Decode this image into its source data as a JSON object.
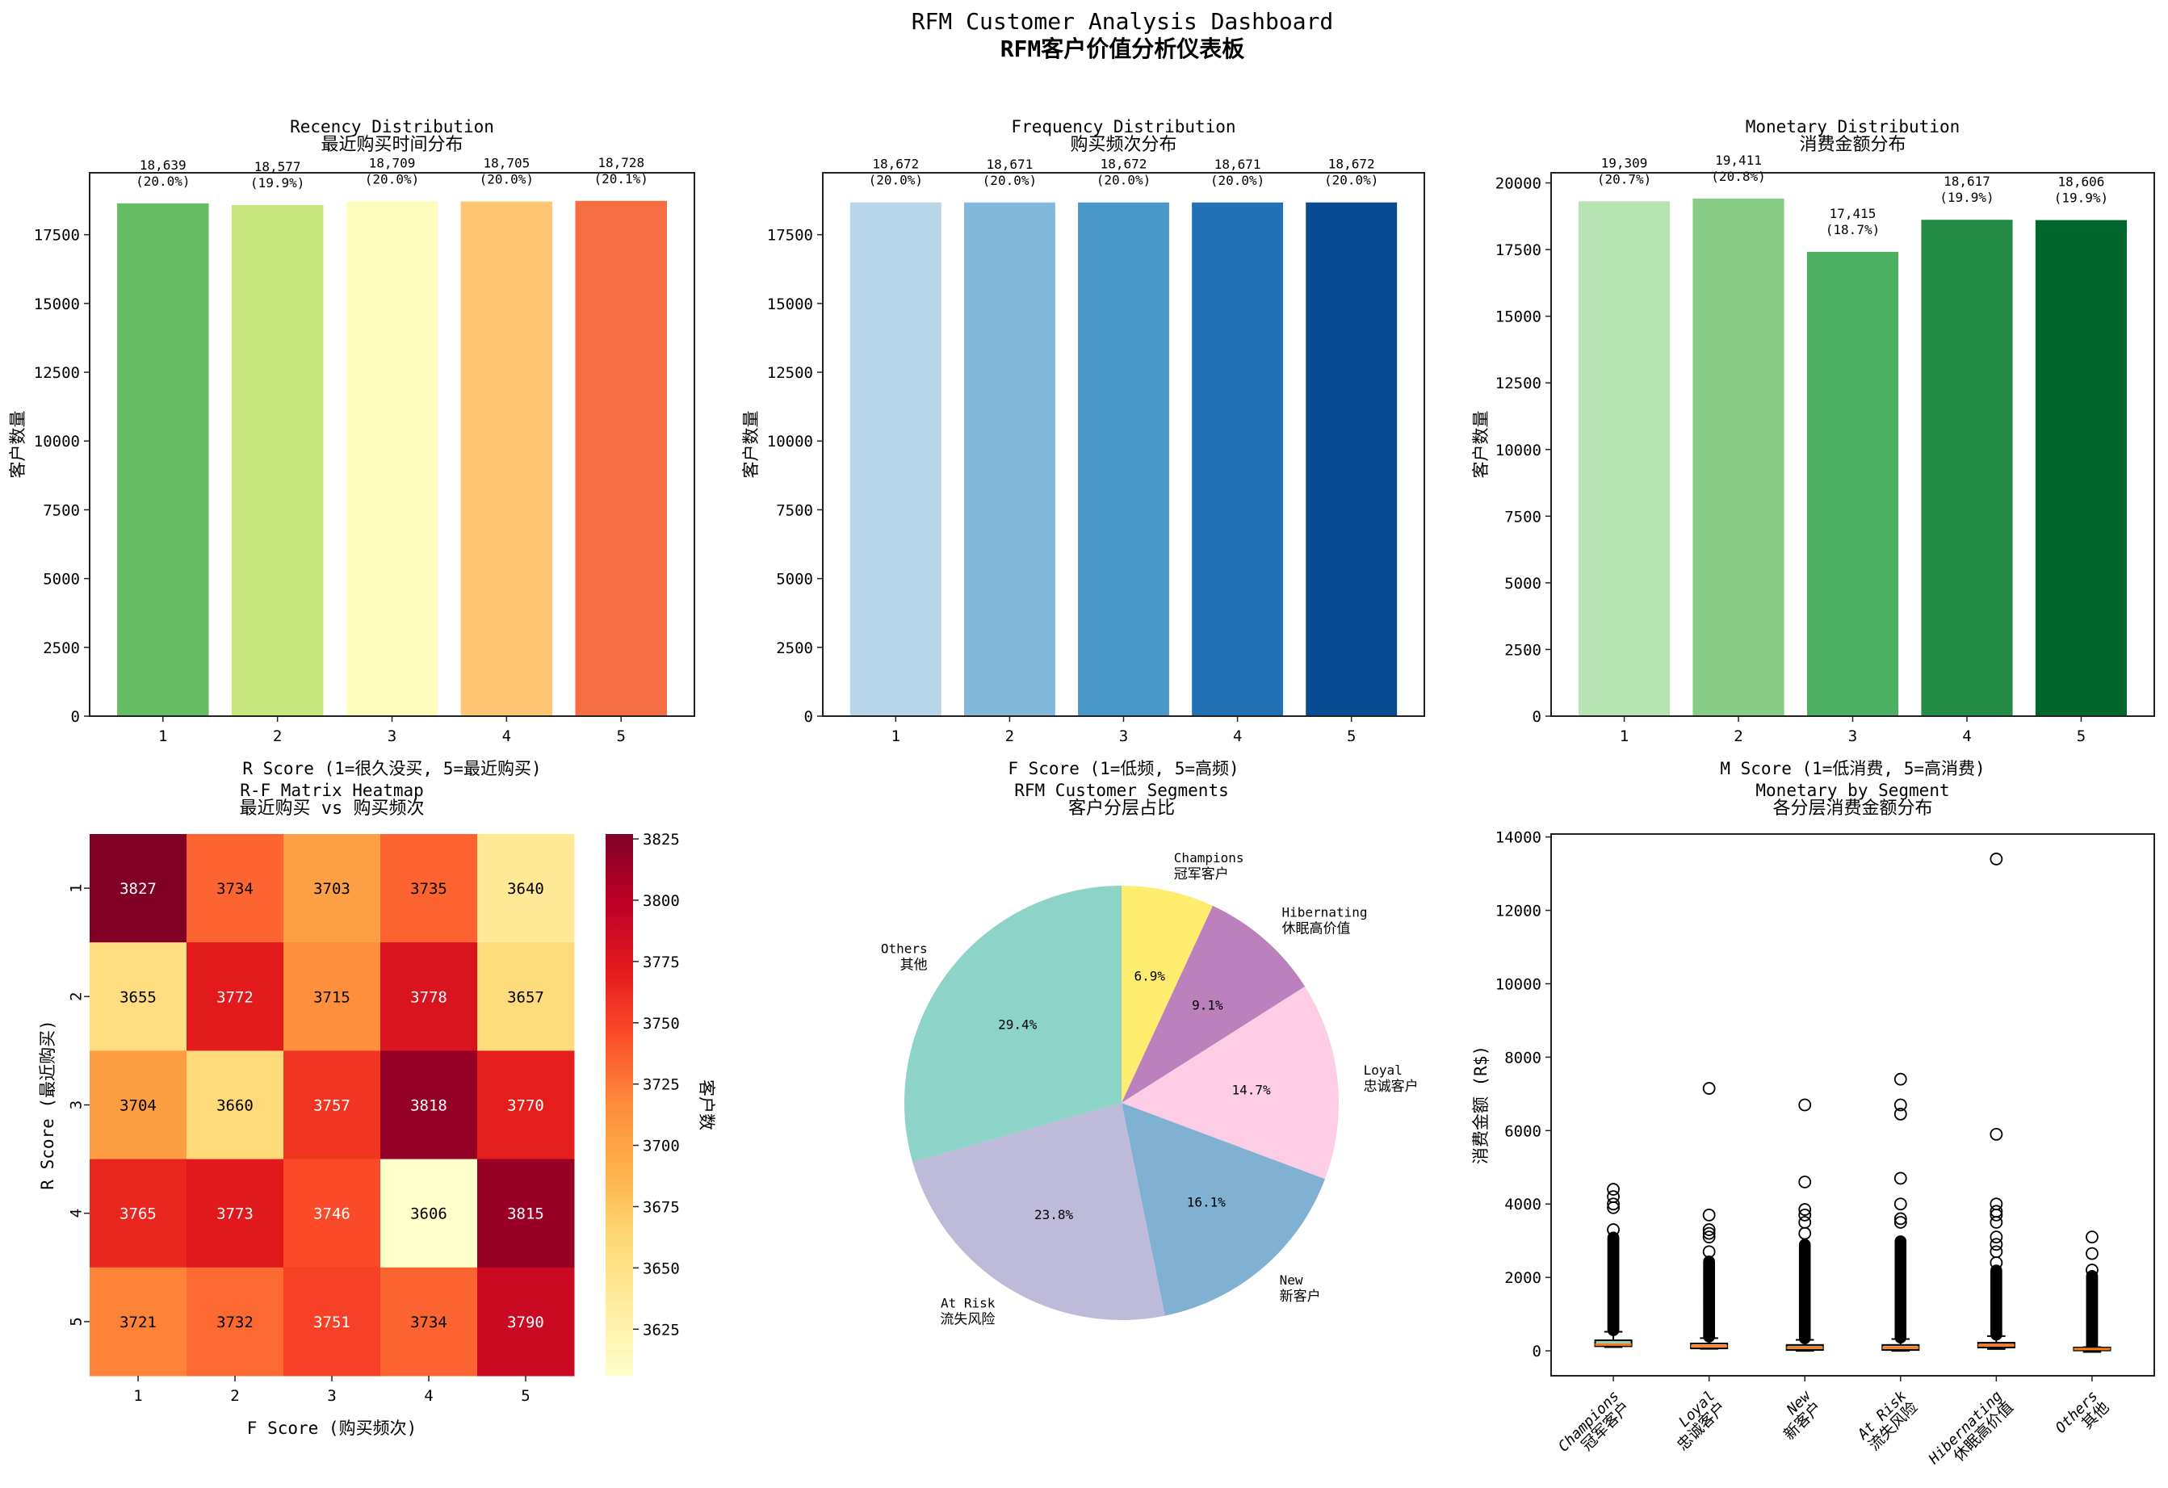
{
  "suptitle": [
    "RFM Customer Analysis Dashboard",
    "RFM客户价值分析仪表板"
  ],
  "chart_data": [
    {
      "type": "bar",
      "title": [
        "Recency Distribution",
        "最近购买时间分布"
      ],
      "xlabel": "R Score (1=很久没买, 5=最近购买)",
      "ylabel": "客户数量",
      "categories": [
        "1",
        "2",
        "3",
        "4",
        "5"
      ],
      "values": [
        18639,
        18577,
        18709,
        18705,
        18728
      ],
      "value_labels": [
        "18,639",
        "18,577",
        "18,709",
        "18,705",
        "18,728"
      ],
      "percent_labels": [
        "(20.0%)",
        "(19.9%)",
        "(20.0%)",
        "(20.0%)",
        "(20.1%)"
      ],
      "colors": [
        "#66bd63",
        "#c4e67c",
        "#fefdbe",
        "#fdc574",
        "#f46d43"
      ],
      "ylim": [
        0,
        19750
      ],
      "yticks": [
        0,
        2500,
        5000,
        7500,
        10000,
        12500,
        15000,
        17500
      ]
    },
    {
      "type": "bar",
      "title": [
        "Frequency Distribution",
        "购买频次分布"
      ],
      "xlabel": "F Score (1=低频, 5=高频)",
      "ylabel": "客户数量",
      "categories": [
        "1",
        "2",
        "3",
        "4",
        "5"
      ],
      "values": [
        18672,
        18671,
        18672,
        18671,
        18672
      ],
      "value_labels": [
        "18,672",
        "18,671",
        "18,672",
        "18,671",
        "18,672"
      ],
      "percent_labels": [
        "(20.0%)",
        "(20.0%)",
        "(20.0%)",
        "(20.0%)",
        "(20.0%)"
      ],
      "colors": [
        "#b9d5ea",
        "#82b9db",
        "#4a98c9",
        "#2271b5",
        "#084b93"
      ],
      "ylim": [
        0,
        19750
      ],
      "yticks": [
        0,
        2500,
        5000,
        7500,
        10000,
        12500,
        15000,
        17500
      ]
    },
    {
      "type": "bar",
      "title": [
        "Monetary Distribution",
        "消费金额分布"
      ],
      "xlabel": "M Score (1=低消费, 5=高消费)",
      "ylabel": "客户数量",
      "categories": [
        "1",
        "2",
        "3",
        "4",
        "5"
      ],
      "values": [
        19309,
        19411,
        17415,
        18617,
        18606
      ],
      "value_labels": [
        "19,309",
        "19,411",
        "17,415",
        "18,617",
        "18,606"
      ],
      "percent_labels": [
        "(20.7%)",
        "(20.8%)",
        "(18.7%)",
        "(19.9%)",
        "(19.9%)"
      ],
      "colors": [
        "#b8e3b2",
        "#88cd85",
        "#4bb062",
        "#238b45",
        "#00662c"
      ],
      "ylim": [
        0,
        20380
      ],
      "yticks": [
        0,
        2500,
        5000,
        7500,
        10000,
        12500,
        15000,
        17500,
        20000
      ]
    },
    {
      "type": "heatmap",
      "title": [
        "R-F Matrix Heatmap",
        "最近购买 vs 购买频次"
      ],
      "xlabel": "F Score (购买频次)",
      "ylabel": "R Score (最近购买)",
      "x_categories": [
        "1",
        "2",
        "3",
        "4",
        "5"
      ],
      "y_categories": [
        "1",
        "2",
        "3",
        "4",
        "5"
      ],
      "values": [
        [
          3827,
          3734,
          3703,
          3735,
          3640
        ],
        [
          3655,
          3772,
          3715,
          3778,
          3657
        ],
        [
          3704,
          3660,
          3757,
          3818,
          3770
        ],
        [
          3765,
          3773,
          3746,
          3606,
          3815
        ],
        [
          3721,
          3732,
          3751,
          3734,
          3790
        ]
      ],
      "colormap": "YlOrRd",
      "colorbar_label": "客户数",
      "colorbar_range": [
        3606,
        3827
      ],
      "colorbar_ticks": [
        3625,
        3650,
        3675,
        3700,
        3725,
        3750,
        3775,
        3800,
        3825
      ]
    },
    {
      "type": "pie",
      "title": [
        "RFM Customer Segments",
        "客户分层占比"
      ],
      "slices": [
        {
          "label": [
            "Champions",
            "冠军客户"
          ],
          "value": 6.9,
          "pct": "6.9%",
          "color": "#ffed6f"
        },
        {
          "label": [
            "Hibernating",
            "休眠高价值"
          ],
          "value": 9.1,
          "pct": "9.1%",
          "color": "#bc80bd"
        },
        {
          "label": [
            "Loyal",
            "忠诚客户"
          ],
          "value": 14.7,
          "pct": "14.7%",
          "color": "#fccde5"
        },
        {
          "label": [
            "New",
            "新客户"
          ],
          "value": 16.1,
          "pct": "16.1%",
          "color": "#80b1d3"
        },
        {
          "label": [
            "At Risk",
            "流失风险"
          ],
          "value": 23.8,
          "pct": "23.8%",
          "color": "#bebada"
        },
        {
          "label": [
            "Others",
            "其他"
          ],
          "value": 29.4,
          "pct": "29.4%",
          "color": "#8dd3c7"
        }
      ],
      "start_angle": 90,
      "direction": "clockwise"
    },
    {
      "type": "box",
      "title": [
        "Monetary by Segment",
        "各分层消费金额分布"
      ],
      "ylabel": "消费金额 (R$)",
      "ylim": [
        -680,
        14080
      ],
      "yticks": [
        0,
        2000,
        4000,
        6000,
        8000,
        10000,
        12000,
        14000
      ],
      "median_color": "#ff7f0e",
      "groups": [
        {
          "label": [
            "Champions",
            "冠军客户"
          ],
          "color": "#8dd3c7",
          "whislo": 100,
          "q1": 125,
          "median": 170,
          "q3": 287,
          "whishi": 520,
          "outlier_band_top": 3100,
          "outliers": [
            3300,
            3900,
            4000,
            4200,
            4400
          ]
        },
        {
          "label": [
            "Loyal",
            "忠诚客户"
          ],
          "color": "#fccde5",
          "whislo": 55,
          "q1": 66,
          "median": 130,
          "q3": 200,
          "whishi": 345,
          "outlier_band_top": 2450,
          "outliers": [
            2700,
            3100,
            3200,
            3300,
            3700,
            7150
          ]
        },
        {
          "label": [
            "New",
            "新客户"
          ],
          "color": "#80b1d3",
          "whislo": 0,
          "q1": 22,
          "median": 85,
          "q3": 160,
          "whishi": 300,
          "outlier_band_top": 2900,
          "outliers": [
            3200,
            3500,
            3700,
            3850,
            4600,
            6700
          ]
        },
        {
          "label": [
            "At Risk",
            "流失风险"
          ],
          "color": "#bebada",
          "whislo": 0,
          "q1": 22,
          "median": 85,
          "q3": 160,
          "whishi": 320,
          "outlier_band_top": 3000,
          "outliers": [
            3500,
            3600,
            4000,
            4700,
            6450,
            6700,
            7400
          ]
        },
        {
          "label": [
            "Hibernating",
            "休眠高价值"
          ],
          "color": "#bc80bd",
          "whislo": 50,
          "q1": 90,
          "median": 150,
          "q3": 220,
          "whishi": 400,
          "outlier_band_top": 2200,
          "outliers": [
            2400,
            2700,
            2900,
            3100,
            3500,
            3700,
            3800,
            4000,
            5900,
            13400
          ]
        },
        {
          "label": [
            "Others",
            "其他"
          ],
          "color": "#ffed6f",
          "whislo": -30,
          "q1": 10,
          "median": 50,
          "q3": 90,
          "whishi": 100,
          "outlier_band_top": 2050,
          "outliers": [
            2200,
            2650,
            3100
          ]
        }
      ]
    }
  ]
}
